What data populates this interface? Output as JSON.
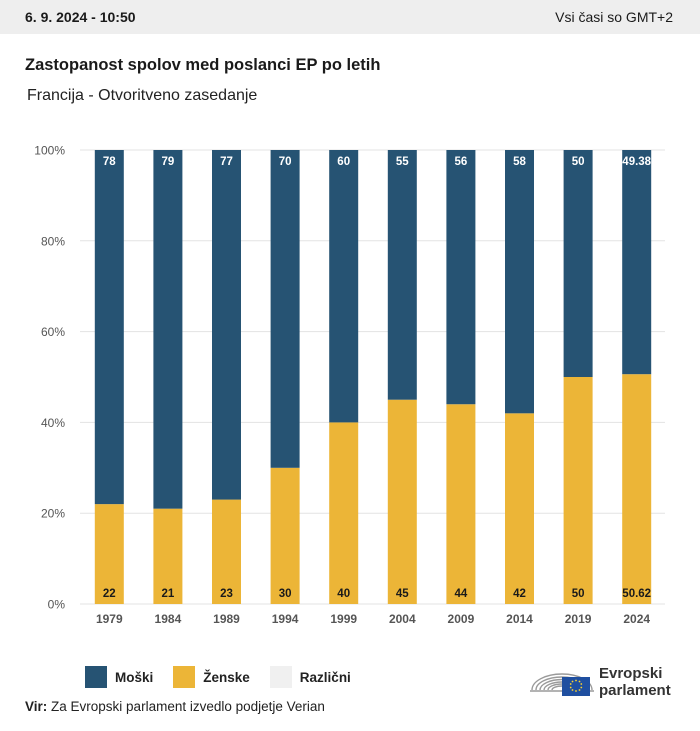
{
  "header": {
    "datetime": "6. 9. 2024 - 10:50",
    "timezone": "Vsi časi so GMT+2"
  },
  "title": "Zastopanost spolov med poslanci EP po letih",
  "subtitle": "Francija - Otvoritveno zasedanje",
  "colors": {
    "male": "#265373",
    "female": "#ecb537",
    "other": "#f0f0f0",
    "grid": "#e3e3e3",
    "axis_text": "#555555"
  },
  "legend": {
    "male_label": "Moški",
    "female_label": "Ženske",
    "other_label": "Različni"
  },
  "source": {
    "label": "Vir:",
    "text": "Za Evropski parlament izvedlo podjetje Verian"
  },
  "logo": {
    "line1": "Evropski",
    "line2": "parlament",
    "icon": "hemicycle-icon",
    "flag_icon": "eu-flag-icon"
  },
  "chart_data": {
    "type": "bar",
    "stacked": true,
    "categories": [
      "1979",
      "1984",
      "1989",
      "1994",
      "1999",
      "2004",
      "2009",
      "2014",
      "2019",
      "2024"
    ],
    "series": [
      {
        "name": "Ženske",
        "values": [
          22,
          21,
          23,
          30,
          40,
          45,
          44,
          42,
          50,
          50.62
        ]
      },
      {
        "name": "Moški",
        "values": [
          78,
          79,
          77,
          70,
          60,
          55,
          56,
          58,
          50,
          49.38
        ]
      },
      {
        "name": "Različni",
        "values": [
          0,
          0,
          0,
          0,
          0,
          0,
          0,
          0,
          0,
          0
        ]
      }
    ],
    "y_ticks": [
      "0%",
      "20%",
      "40%",
      "60%",
      "80%",
      "100%"
    ],
    "ylim": [
      0,
      100
    ],
    "grid": true,
    "legend_position": "bottom-left"
  }
}
